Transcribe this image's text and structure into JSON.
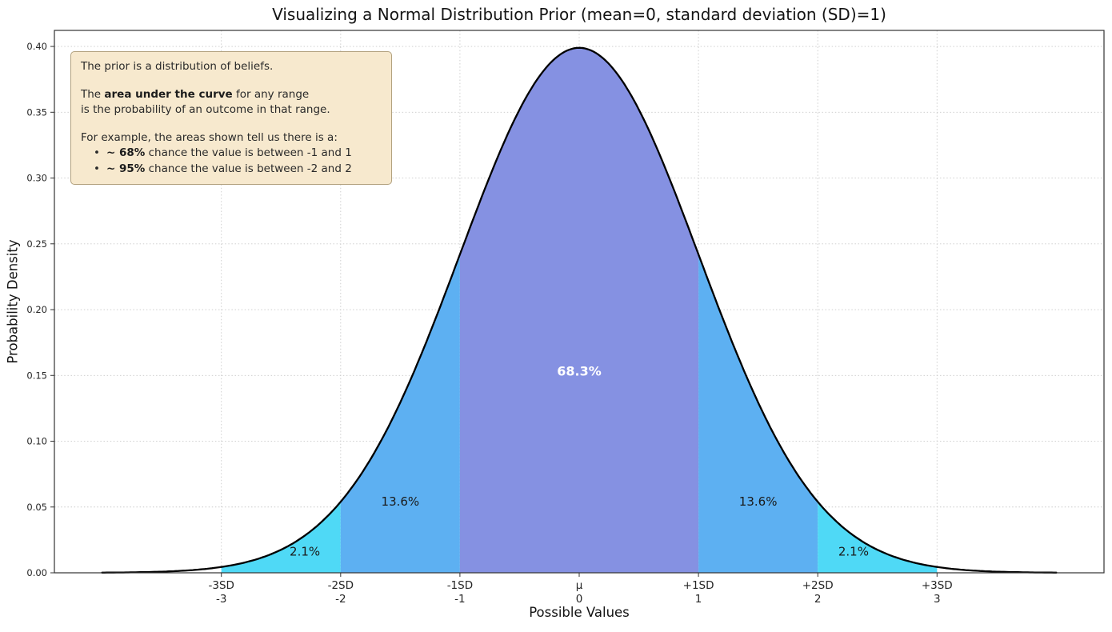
{
  "title": "Visualizing a Normal Distribution Prior (mean=0, standard deviation (SD)=1)",
  "xlabel": "Possible Values",
  "ylabel": "Probability Density",
  "annotation": {
    "line1": "The prior is a distribution of beliefs.",
    "line2_pre": "The ",
    "line2_bold": "area under the curve",
    "line2_post": " for any range",
    "line3": "is the probability of an outcome in that range.",
    "line4": "For example, the areas shown tell us there is a:",
    "bullet_char": "•",
    "bullet1_bold": "~ 68%",
    "bullet1_rest": " chance the value is between -1 and 1",
    "bullet2_bold": "~ 95%",
    "bullet2_rest": " chance the value is between -2 and 2"
  },
  "chart_data": {
    "type": "area",
    "distribution": "normal",
    "mean": 0,
    "sd": 1,
    "curve_color": "#000000",
    "xlim": [
      -4.4,
      4.4
    ],
    "curve_range": [
      -4,
      4
    ],
    "ylim": [
      0,
      0.4122
    ],
    "grid": true,
    "yticks": [
      {
        "label": "0.00",
        "value": 0
      },
      {
        "label": "0.05",
        "value": 0.05
      },
      {
        "label": "0.10",
        "value": 0.1
      },
      {
        "label": "0.15",
        "value": 0.15
      },
      {
        "label": "0.20",
        "value": 0.2
      },
      {
        "label": "0.25",
        "value": 0.25
      },
      {
        "label": "0.30",
        "value": 0.3
      },
      {
        "label": "0.35",
        "value": 0.35
      },
      {
        "label": "0.40",
        "value": 0.4
      }
    ],
    "xticks": [
      {
        "sd_label": "-3SD",
        "value_label": "-3",
        "value": -3
      },
      {
        "sd_label": "-2SD",
        "value_label": "-2",
        "value": -2
      },
      {
        "sd_label": "-1SD",
        "value_label": "-1",
        "value": -1
      },
      {
        "sd_label": "μ",
        "value_label": "0",
        "value": 0
      },
      {
        "sd_label": "+1SD",
        "value_label": "1",
        "value": 1
      },
      {
        "sd_label": "+2SD",
        "value_label": "2",
        "value": 2
      },
      {
        "sd_label": "+3SD",
        "value_label": "3",
        "value": 3
      }
    ],
    "regions": [
      {
        "from": -3,
        "to": -2,
        "color": "#4fd9f6",
        "label": "2.1%",
        "label_x": -2.3,
        "label_y": 0.013,
        "label_color": "#1a1a1a",
        "label_size": 15,
        "label_bold": false
      },
      {
        "from": -2,
        "to": -1,
        "color": "#5db0f2",
        "label": "13.6%",
        "label_x": -1.5,
        "label_y": 0.051,
        "label_color": "#1a1a1a",
        "label_size": 15,
        "label_bold": false
      },
      {
        "from": -1,
        "to": 1,
        "color": "#8591e2",
        "label": "68.3%",
        "label_x": 0,
        "label_y": 0.15,
        "label_color": "#ffffff",
        "label_size": 16,
        "label_bold": true
      },
      {
        "from": 1,
        "to": 2,
        "color": "#5db0f2",
        "label": "13.6%",
        "label_x": 1.5,
        "label_y": 0.051,
        "label_color": "#1a1a1a",
        "label_size": 15,
        "label_bold": false
      },
      {
        "from": 2,
        "to": 3,
        "color": "#4fd9f6",
        "label": "2.1%",
        "label_x": 2.3,
        "label_y": 0.013,
        "label_color": "#1a1a1a",
        "label_size": 15,
        "label_bold": false
      }
    ]
  }
}
